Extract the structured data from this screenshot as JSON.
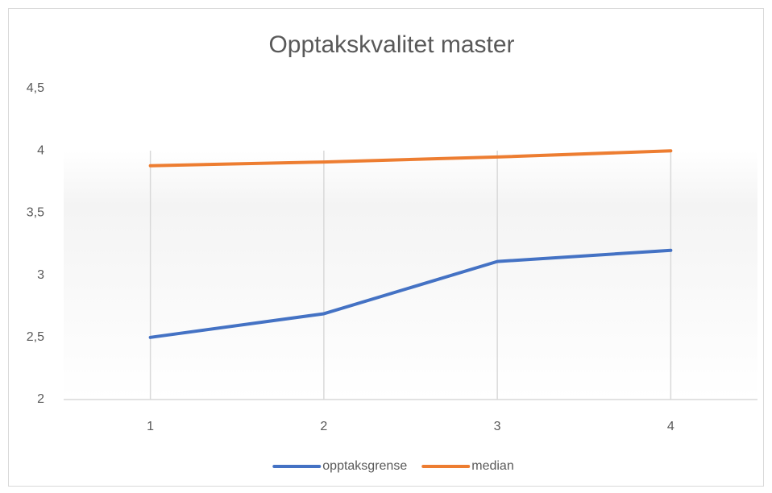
{
  "chart_data": {
    "type": "line",
    "title": "Opptakskvalitet master",
    "categories": [
      "1",
      "2",
      "3",
      "4"
    ],
    "series": [
      {
        "name": "opptaksgrense",
        "color": "#4472c4",
        "values": [
          2.5,
          2.69,
          3.11,
          3.2
        ]
      },
      {
        "name": "median",
        "color": "#ed7d31",
        "values": [
          3.88,
          3.91,
          3.95,
          4.0
        ]
      }
    ],
    "ylim": [
      2,
      4.5
    ],
    "yticks": [
      2,
      {
        "value": 2.5,
        "label": "2,5"
      },
      3,
      {
        "value": 3.5,
        "label": "3,5"
      },
      4,
      {
        "value": 4.5,
        "label": "4,5"
      }
    ],
    "grid": true,
    "legend": "bottom"
  }
}
